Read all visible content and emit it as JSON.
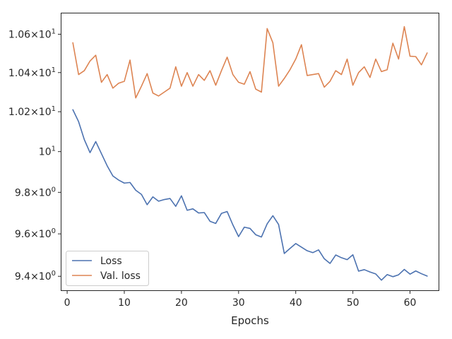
{
  "chart_data": {
    "type": "line",
    "xlabel": "Epochs",
    "ylabel": "",
    "xlim": [
      -1,
      65
    ],
    "ylim": [
      9.335,
      10.71
    ],
    "y_scale": "log",
    "grid": false,
    "legend_position": "lower-left",
    "x_ticks": [
      0,
      10,
      20,
      30,
      40,
      50,
      60
    ],
    "x_tick_labels": [
      "0",
      "10",
      "20",
      "30",
      "40",
      "50",
      "60"
    ],
    "y_ticks": [
      9.4,
      9.6,
      9.8,
      10.0,
      10.2,
      10.4,
      10.6
    ],
    "y_tick_labels": [
      {
        "mant": "9.4",
        "base": "×10",
        "exp": "0"
      },
      {
        "mant": "9.6",
        "base": "×10",
        "exp": "0"
      },
      {
        "mant": "9.8",
        "base": "×10",
        "exp": "0"
      },
      {
        "mant": "",
        "base": "10",
        "exp": "1"
      },
      {
        "mant": "1.02",
        "base": "×10",
        "exp": "1"
      },
      {
        "mant": "1.04",
        "base": "×10",
        "exp": "1"
      },
      {
        "mant": "1.06",
        "base": "×10",
        "exp": "1"
      }
    ],
    "x": [
      1,
      2,
      3,
      4,
      5,
      6,
      7,
      8,
      9,
      10,
      11,
      12,
      13,
      14,
      15,
      16,
      17,
      18,
      19,
      20,
      21,
      22,
      23,
      24,
      25,
      26,
      27,
      28,
      29,
      30,
      31,
      32,
      33,
      34,
      35,
      36,
      37,
      38,
      39,
      40,
      41,
      42,
      43,
      44,
      45,
      46,
      47,
      48,
      49,
      50,
      51,
      52,
      53,
      54,
      55,
      56,
      57,
      58,
      59,
      60,
      61,
      62,
      63
    ],
    "series": [
      {
        "name": "Loss",
        "color": "#4c72b0",
        "values": [
          10.21,
          10.15,
          10.06,
          9.995,
          10.05,
          9.99,
          9.93,
          9.88,
          9.86,
          9.845,
          9.848,
          9.81,
          9.79,
          9.74,
          9.778,
          9.757,
          9.765,
          9.77,
          9.732,
          9.783,
          9.713,
          9.72,
          9.7,
          9.702,
          9.66,
          9.65,
          9.698,
          9.707,
          9.643,
          9.587,
          9.632,
          9.626,
          9.596,
          9.585,
          9.648,
          9.687,
          9.645,
          9.507,
          9.531,
          9.554,
          9.537,
          9.52,
          9.511,
          9.524,
          9.482,
          9.46,
          9.5,
          9.487,
          9.478,
          9.501,
          9.424,
          9.431,
          9.42,
          9.411,
          9.382,
          9.408,
          9.398,
          9.407,
          9.432,
          9.41,
          9.425,
          9.412,
          9.401
        ]
      },
      {
        "name": "Val. loss",
        "color": "#dd8452",
        "values": [
          10.555,
          10.39,
          10.41,
          10.46,
          10.49,
          10.35,
          10.39,
          10.32,
          10.345,
          10.355,
          10.465,
          10.27,
          10.33,
          10.395,
          10.295,
          10.28,
          10.3,
          10.32,
          10.43,
          10.33,
          10.4,
          10.33,
          10.39,
          10.36,
          10.41,
          10.335,
          10.41,
          10.48,
          10.39,
          10.35,
          10.34,
          10.405,
          10.315,
          10.3,
          10.63,
          10.555,
          10.33,
          10.37,
          10.415,
          10.47,
          10.545,
          10.385,
          10.39,
          10.395,
          10.325,
          10.355,
          10.41,
          10.39,
          10.47,
          10.335,
          10.4,
          10.43,
          10.375,
          10.47,
          10.405,
          10.415,
          10.553,
          10.47,
          10.64,
          10.485,
          10.483,
          10.44,
          10.502
        ]
      }
    ]
  }
}
